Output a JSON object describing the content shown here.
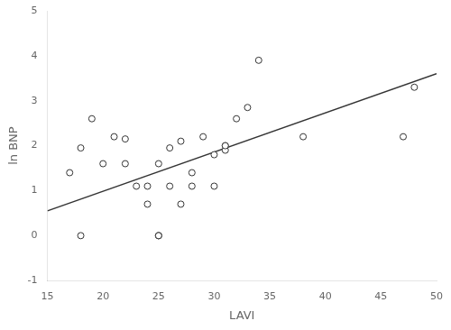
{
  "chart_data": {
    "type": "scatter",
    "xlabel": "LAVI",
    "ylabel": "ln BNP",
    "series": [
      {
        "type": "scatter",
        "color": "#333333",
        "marker": "circle",
        "x": [
          17,
          18,
          18,
          19,
          20,
          21,
          22,
          22,
          23,
          24,
          24,
          25,
          25,
          25,
          25,
          26,
          26,
          27,
          27,
          28,
          28,
          29,
          30,
          30,
          31,
          31,
          31,
          32,
          33,
          34,
          38,
          47,
          48
        ],
        "values": [
          1.4,
          0.0,
          1.95,
          2.6,
          1.6,
          2.2,
          2.15,
          1.6,
          1.1,
          1.1,
          0.7,
          0.0,
          0.0,
          0.0,
          1.6,
          1.95,
          1.1,
          2.1,
          0.7,
          1.1,
          1.4,
          2.2,
          1.8,
          1.1,
          2.0,
          1.9,
          2.0,
          2.6,
          2.85,
          3.9,
          2.2,
          2.2,
          3.3
        ]
      },
      {
        "type": "line",
        "color": "#333333",
        "line_style": "solid",
        "x": [
          15,
          50
        ],
        "values": [
          0.55,
          3.6
        ]
      }
    ],
    "xlim": [
      15,
      50
    ],
    "ylim": [
      -1,
      5
    ],
    "xticks": [
      15,
      20,
      25,
      30,
      35,
      40,
      45,
      50
    ],
    "yticks": [
      -1,
      0,
      1,
      2,
      3,
      4,
      5
    ],
    "grid": false
  }
}
